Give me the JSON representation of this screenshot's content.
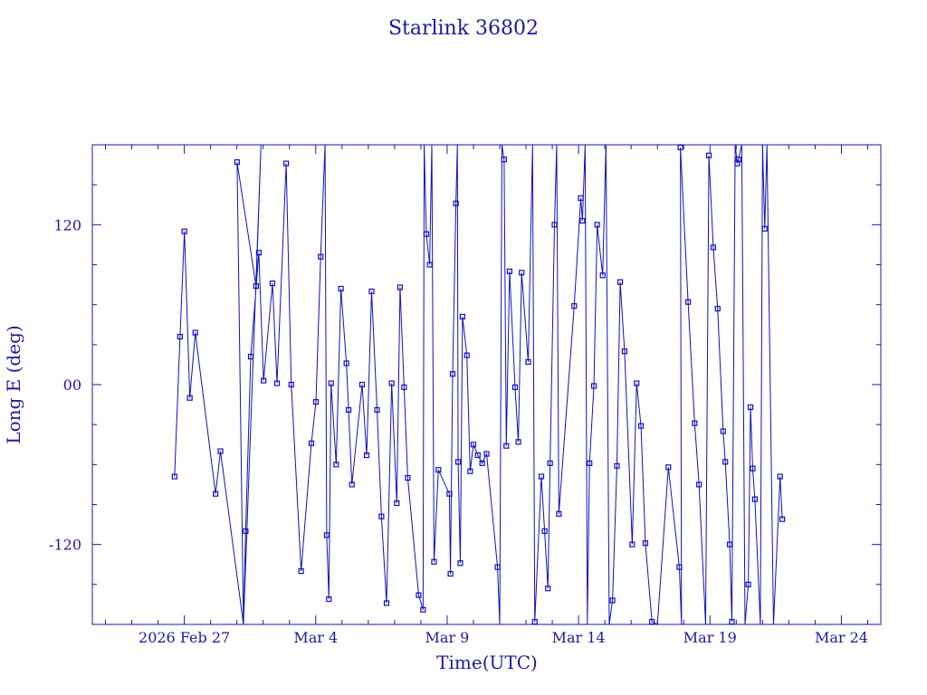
{
  "chart_data": {
    "type": "line",
    "title": "Starlink 36802",
    "xlabel": "Time(UTC)",
    "ylabel": "Long E (deg)",
    "x_tick_labels": [
      "2026 Feb 27",
      "Mar  4",
      "Mar  9",
      "Mar 14",
      "Mar 19",
      "Mar 24"
    ],
    "y_tick_labels": [
      "-120",
      "00",
      "120"
    ],
    "xlim": [
      "2026-02-23T12:00",
      "2026-03-25T12:00"
    ],
    "ylim": [
      -180,
      180
    ],
    "x_major_ticks": [
      "2026-02-27",
      "2026-03-04",
      "2026-03-09",
      "2026-03-14",
      "2026-03-19",
      "2026-03-24"
    ],
    "y_major_ticks": [
      -120,
      0,
      120
    ],
    "series_color": "#1010c0",
    "axis_color": "#1a1aa0",
    "marker": "square",
    "grid": false,
    "legend": "none",
    "points": [
      {
        "t": "2026-02-26T15:05",
        "y": -69
      },
      {
        "t": "2026-02-26T20:05",
        "y": 36
      },
      {
        "t": "2026-02-27T00:05",
        "y": 115
      },
      {
        "t": "2026-02-27T05:00",
        "y": -10
      },
      {
        "t": "2026-02-27T10:00",
        "y": 39
      },
      {
        "t": "2026-02-28T04:30",
        "y": -82
      },
      {
        "t": "2026-02-28T09:00",
        "y": -50
      },
      {
        "t": "2026-02-29T06:00",
        "y": -180
      },
      {
        "t": "2026-02-29T00:10",
        "y": 167
      },
      {
        "t": "2026-02-29T17:30",
        "y": 74
      },
      {
        "t": "2026-02-29T22:00",
        "y": 180
      },
      {
        "t": "2026-03-01T06:00",
        "y": -180
      },
      {
        "t": "2026-03-01T08:00",
        "y": -110
      },
      {
        "t": "2026-03-01T12:40",
        "y": 21
      },
      {
        "t": "2026-03-01T20:00",
        "y": 99
      },
      {
        "t": "2026-03-02T00:20",
        "y": 3
      },
      {
        "t": "2026-03-02T08:30",
        "y": 76
      },
      {
        "t": "2026-03-02T12:40",
        "y": 1
      },
      {
        "t": "2026-03-02T21:00",
        "y": 166
      },
      {
        "t": "2026-03-03T01:40",
        "y": 0
      },
      {
        "t": "2026-03-03T10:40",
        "y": -140
      },
      {
        "t": "2026-03-03T20:00",
        "y": -44
      },
      {
        "t": "2026-03-04T00:10",
        "y": -13
      },
      {
        "t": "2026-03-04T04:30",
        "y": 96
      },
      {
        "t": "2026-03-04T08:30",
        "y": 180
      },
      {
        "t": "2026-03-04T10:00",
        "y": -113
      },
      {
        "t": "2026-03-04T12:00",
        "y": -161
      },
      {
        "t": "2026-03-04T14:00",
        "y": 1
      },
      {
        "t": "2026-03-04T18:40",
        "y": -60
      },
      {
        "t": "2026-03-04T23:00",
        "y": 72
      },
      {
        "t": "2026-03-05T04:00",
        "y": 16
      },
      {
        "t": "2026-03-05T06:00",
        "y": -19
      },
      {
        "t": "2026-03-05T09:00",
        "y": -75
      },
      {
        "t": "2026-03-05T18:20",
        "y": 0
      },
      {
        "t": "2026-03-05T22:30",
        "y": -53
      },
      {
        "t": "2026-03-06T03:00",
        "y": 70
      },
      {
        "t": "2026-03-06T08:00",
        "y": -19
      },
      {
        "t": "2026-03-06T12:00",
        "y": -99
      },
      {
        "t": "2026-03-06T16:40",
        "y": -164
      },
      {
        "t": "2026-03-06T21:20",
        "y": 1
      },
      {
        "t": "2026-03-07T02:00",
        "y": -89
      },
      {
        "t": "2026-03-07T05:00",
        "y": 73
      },
      {
        "t": "2026-03-07T08:40",
        "y": -2
      },
      {
        "t": "2026-03-07T12:00",
        "y": -70
      },
      {
        "t": "2026-03-07T22:00",
        "y": -158
      },
      {
        "t": "2026-03-08T02:00",
        "y": -169
      },
      {
        "t": "2026-03-08T03:00",
        "y": 180
      },
      {
        "t": "2026-03-08T05:00",
        "y": 113
      },
      {
        "t": "2026-03-08T08:00",
        "y": 90
      },
      {
        "t": "2026-03-08T10:00",
        "y": 180
      },
      {
        "t": "2026-03-08T12:00",
        "y": -133
      },
      {
        "t": "2026-03-08T16:00",
        "y": -64
      },
      {
        "t": "2026-03-09T02:00",
        "y": -82
      },
      {
        "t": "2026-03-09T03:00",
        "y": -142
      },
      {
        "t": "2026-03-09T05:00",
        "y": 8
      },
      {
        "t": "2026-03-09T08:00",
        "y": 136
      },
      {
        "t": "2026-03-09T09:20",
        "y": 180
      },
      {
        "t": "2026-03-09T10:00",
        "y": -58
      },
      {
        "t": "2026-03-09T12:00",
        "y": -134
      },
      {
        "t": "2026-03-09T14:00",
        "y": 51
      },
      {
        "t": "2026-03-09T18:00",
        "y": 22
      },
      {
        "t": "2026-03-09T21:00",
        "y": -65
      },
      {
        "t": "2026-03-10T00:00",
        "y": -45
      },
      {
        "t": "2026-03-10T04:00",
        "y": -53
      },
      {
        "t": "2026-03-10T08:00",
        "y": -59
      },
      {
        "t": "2026-03-10T12:00",
        "y": -52
      },
      {
        "t": "2026-03-10T22:00",
        "y": -137
      },
      {
        "t": "2026-03-11T00:00",
        "y": -180
      },
      {
        "t": "2026-03-11T02:00",
        "y": 180
      },
      {
        "t": "2026-03-11T04:00",
        "y": 169
      },
      {
        "t": "2026-03-11T06:00",
        "y": -46
      },
      {
        "t": "2026-03-11T09:00",
        "y": 85
      },
      {
        "t": "2026-03-11T14:00",
        "y": -2
      },
      {
        "t": "2026-03-11T17:00",
        "y": -43
      },
      {
        "t": "2026-03-11T20:00",
        "y": 84
      },
      {
        "t": "2026-03-12T02:00",
        "y": 17
      },
      {
        "t": "2026-03-12T06:00",
        "y": 180
      },
      {
        "t": "2026-03-12T08:00",
        "y": -178
      },
      {
        "t": "2026-03-12T14:00",
        "y": -69
      },
      {
        "t": "2026-03-12T17:00",
        "y": -110
      },
      {
        "t": "2026-03-12T20:00",
        "y": -153
      },
      {
        "t": "2026-03-12T22:00",
        "y": -59
      },
      {
        "t": "2026-03-13T02:00",
        "y": 120
      },
      {
        "t": "2026-03-13T04:00",
        "y": 180
      },
      {
        "t": "2026-03-13T06:00",
        "y": -97
      },
      {
        "t": "2026-03-13T20:00",
        "y": 59
      },
      {
        "t": "2026-03-14T02:00",
        "y": 140
      },
      {
        "t": "2026-03-14T03:30",
        "y": 123
      },
      {
        "t": "2026-03-14T06:00",
        "y": 180
      },
      {
        "t": "2026-03-14T08:00",
        "y": -180
      },
      {
        "t": "2026-03-14T10:00",
        "y": -59
      },
      {
        "t": "2026-03-14T14:00",
        "y": -1
      },
      {
        "t": "2026-03-14T17:00",
        "y": 120
      },
      {
        "t": "2026-03-14T22:00",
        "y": 82
      },
      {
        "t": "2026-03-15T01:00",
        "y": 180
      },
      {
        "t": "2026-03-15T04:00",
        "y": -180
      },
      {
        "t": "2026-03-15T07:00",
        "y": -162
      },
      {
        "t": "2026-03-15T11:00",
        "y": -61
      },
      {
        "t": "2026-03-15T14:00",
        "y": 77
      },
      {
        "t": "2026-03-15T18:00",
        "y": 25
      },
      {
        "t": "2026-03-16T01:00",
        "y": -120
      },
      {
        "t": "2026-03-16T05:00",
        "y": 1
      },
      {
        "t": "2026-03-16T09:00",
        "y": -31
      },
      {
        "t": "2026-03-16T13:00",
        "y": -119
      },
      {
        "t": "2026-03-16T19:00",
        "y": -178
      },
      {
        "t": "2026-03-17T00:00",
        "y": -180
      },
      {
        "t": "2026-03-17T10:00",
        "y": -62
      },
      {
        "t": "2026-03-17T20:00",
        "y": -137
      },
      {
        "t": "2026-03-17T22:00",
        "y": -180
      },
      {
        "t": "2026-03-17T21:00",
        "y": 178
      },
      {
        "t": "2026-03-18T04:00",
        "y": 62
      },
      {
        "t": "2026-03-18T10:00",
        "y": -29
      },
      {
        "t": "2026-03-18T14:00",
        "y": -75
      },
      {
        "t": "2026-03-18T20:00",
        "y": -180
      },
      {
        "t": "2026-03-18T23:00",
        "y": 172
      },
      {
        "t": "2026-03-19T03:00",
        "y": 103
      },
      {
        "t": "2026-03-19T07:00",
        "y": 57
      },
      {
        "t": "2026-03-19T12:00",
        "y": -35
      },
      {
        "t": "2026-03-19T14:00",
        "y": -58
      },
      {
        "t": "2026-03-19T18:00",
        "y": -120
      },
      {
        "t": "2026-03-19T20:00",
        "y": -178
      },
      {
        "t": "2026-03-19T23:00",
        "y": 180
      },
      {
        "t": "2026-03-20T01:00",
        "y": 166
      },
      {
        "t": "2026-03-20T02:00",
        "y": 169
      },
      {
        "t": "2026-03-20T05:00",
        "y": 180
      },
      {
        "t": "2026-03-20T08:00",
        "y": -180
      },
      {
        "t": "2026-03-20T11:00",
        "y": -150
      },
      {
        "t": "2026-03-20T13:00",
        "y": -17
      },
      {
        "t": "2026-03-20T15:00",
        "y": -63
      },
      {
        "t": "2026-03-20T17:00",
        "y": -86
      },
      {
        "t": "2026-03-20T22:00",
        "y": -180
      },
      {
        "t": "2026-03-21T00:00",
        "y": 180
      },
      {
        "t": "2026-03-21T02:00",
        "y": 117
      },
      {
        "t": "2026-03-21T04:00",
        "y": 180
      },
      {
        "t": "2026-03-21T10:00",
        "y": -180
      },
      {
        "t": "2026-03-21T16:00",
        "y": -69
      },
      {
        "t": "2026-03-21T18:00",
        "y": -101
      }
    ]
  }
}
